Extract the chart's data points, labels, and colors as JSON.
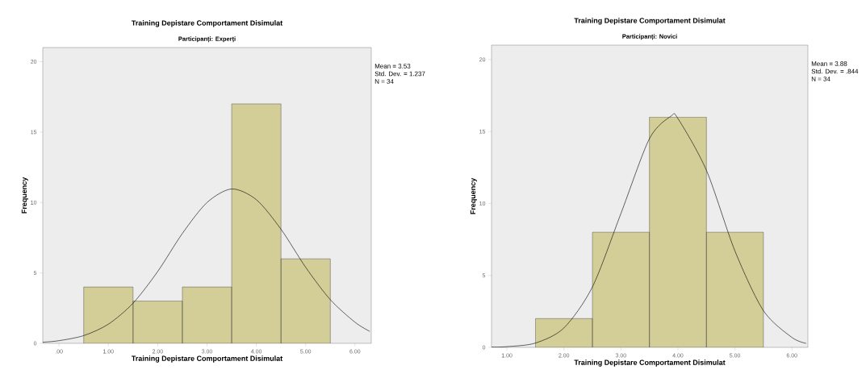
{
  "chart_data": [
    {
      "type": "histogram",
      "title": "Training Depistare Comportament Disimulat",
      "subtitle": "Participanți: Experți",
      "xlabel": "Training Depistare Comportament Disimulat",
      "ylabel": "Frequency",
      "series": [
        {
          "type": "histogram",
          "bins": [
            0.5,
            1.5,
            2.5,
            3.5,
            4.5,
            5.5
          ],
          "values": [
            4,
            3,
            4,
            17,
            6
          ],
          "color": "#d3ce97"
        },
        {
          "type": "line",
          "x": [
            -0.33,
            0,
            0.5,
            1,
            1.5,
            2,
            2.5,
            3,
            3.5,
            4,
            4.5,
            5,
            5.5,
            6,
            6.3
          ],
          "values": [
            0.08,
            0.19,
            0.55,
            1.36,
            2.85,
            5.1,
            7.8,
            10.0,
            10.96,
            10.2,
            8.1,
            5.4,
            3.1,
            1.5,
            0.85
          ],
          "color": "#000000"
        }
      ],
      "xlim": [
        -0.33,
        6.33
      ],
      "ylim": [
        0,
        21
      ],
      "xticks": [
        {
          "value": 0,
          "label": ".00"
        },
        {
          "value": 1,
          "label": "1.00"
        },
        {
          "value": 2,
          "label": "2.00"
        },
        {
          "value": 3,
          "label": "3.00"
        },
        {
          "value": 4,
          "label": "4.00"
        },
        {
          "value": 5,
          "label": "5.00"
        },
        {
          "value": 6,
          "label": "6.00"
        }
      ],
      "yticks": [
        0,
        5,
        10,
        15,
        20
      ],
      "annotations": [
        "Mean = 3.53",
        "Std. Dev. = 1.237",
        "N = 34"
      ]
    },
    {
      "type": "histogram",
      "title": "Training Depistare Comportament Disimulat",
      "subtitle": "Participanți: Novici",
      "xlabel": "Training Depistare Comportament Disimulat",
      "ylabel": "Frequency",
      "series": [
        {
          "type": "histogram",
          "bins": [
            1.5,
            2.5,
            3.5,
            4.5,
            5.5
          ],
          "values": [
            2,
            8,
            16,
            8
          ],
          "color": "#d3ce97"
        },
        {
          "type": "line",
          "x": [
            0.73,
            1,
            1.5,
            2,
            2.5,
            3,
            3.5,
            3.88,
            4,
            4.5,
            5,
            5.5,
            6,
            6.25
          ],
          "values": [
            0.02,
            0.05,
            0.3,
            1.35,
            4.2,
            9.3,
            14.5,
            16.07,
            15.9,
            12.3,
            6.7,
            2.55,
            0.69,
            0.28
          ],
          "color": "#000000"
        }
      ],
      "xlim": [
        0.73,
        6.28
      ],
      "ylim": [
        0,
        21
      ],
      "xticks": [
        {
          "value": 1,
          "label": "1.00"
        },
        {
          "value": 2,
          "label": "2.00"
        },
        {
          "value": 3,
          "label": "3.00"
        },
        {
          "value": 4,
          "label": "4.00"
        },
        {
          "value": 5,
          "label": "5.00"
        },
        {
          "value": 6,
          "label": "6.00"
        }
      ],
      "yticks": [
        0,
        5,
        10,
        15,
        20
      ],
      "annotations": [
        "Mean = 3.88",
        "Std. Dev. = .844",
        "N = 34"
      ]
    }
  ]
}
